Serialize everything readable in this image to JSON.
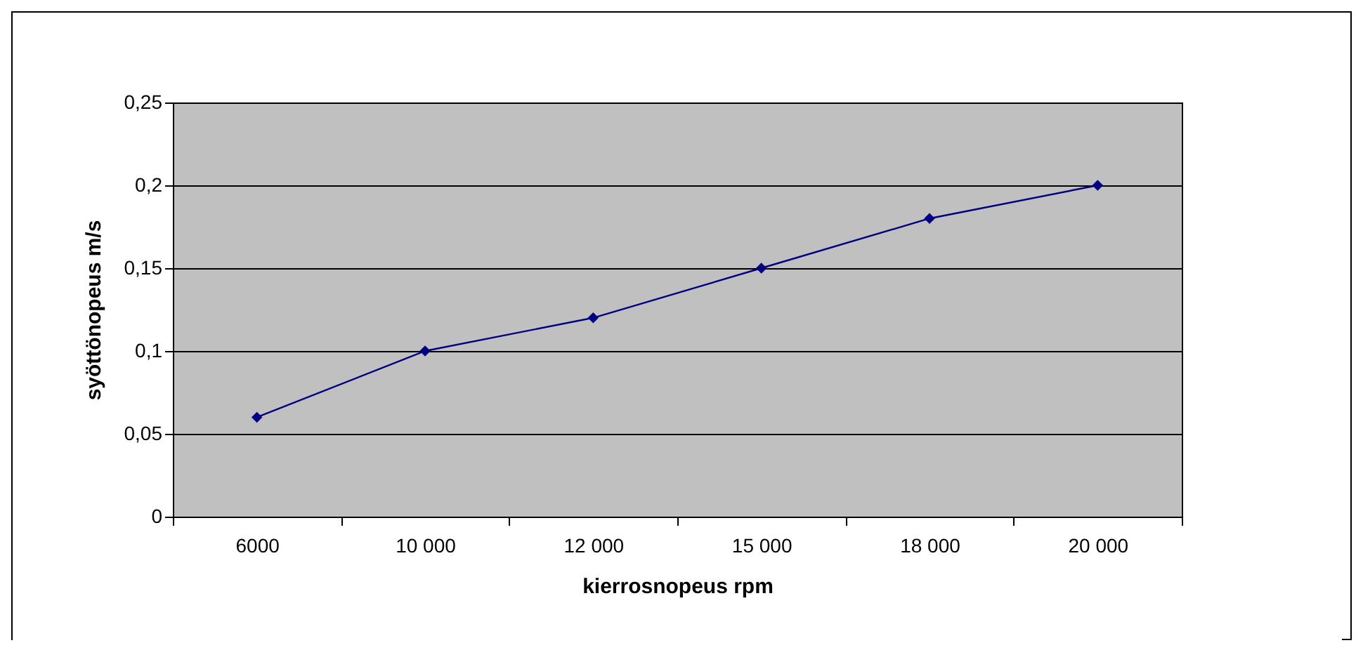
{
  "chart_data": {
    "type": "line",
    "xlabel": "kierrosnopeus rpm",
    "ylabel": "syöttönopeus m/s",
    "categories": [
      "6000",
      "10 000",
      "12 000",
      "15 000",
      "18 000",
      "20 000"
    ],
    "series": [
      {
        "color": "#000080",
        "values": [
          0.06,
          0.1,
          0.12,
          0.15,
          0.18,
          0.2
        ]
      }
    ],
    "ylim": [
      0,
      0.25
    ],
    "yticks": [
      0,
      {
        "value": 0.05,
        "label": "0,05"
      },
      {
        "value": 0.1,
        "label": "0,1"
      },
      {
        "value": 0.15,
        "label": "0,15"
      },
      {
        "value": 0.2,
        "label": "0,2"
      },
      {
        "value": 0.25,
        "label": "0,25"
      }
    ],
    "grid": "y",
    "marker": "diamond",
    "line_style": "solid"
  }
}
